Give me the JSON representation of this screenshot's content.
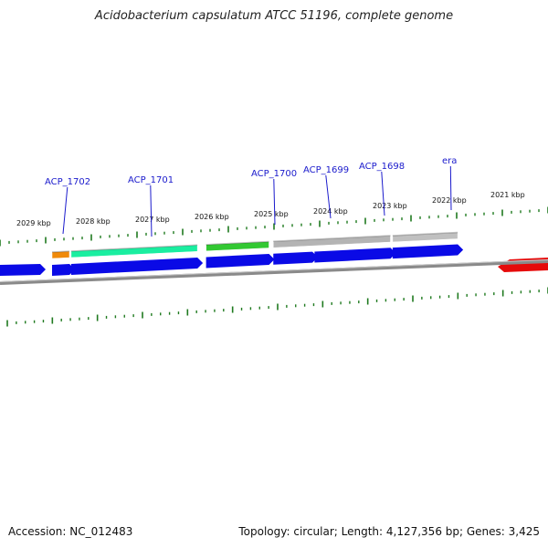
{
  "title": "Acidobacterium capsulatum ATCC 51196, complete genome",
  "footer": {
    "accession": "Accession: NC_012483",
    "topology": "Topology: circular; Length: 4,127,356 bp; Genes: 3,425"
  },
  "colors": {
    "backbone": "#8a8a8a",
    "tick": "#1f7a1f",
    "cds_forward": "#0a0ae6",
    "cds_reverse": "#e60a0a",
    "label": "#1a1acc"
  },
  "scale_labels": [
    "2029 kbp",
    "2028 kbp",
    "2027 kbp",
    "2026 kbp",
    "2025 kbp",
    "2024 kbp",
    "2023 kbp",
    "2022 kbp",
    "2021 kbp"
  ],
  "gene_labels": [
    "ACP_1702",
    "ACP_1701",
    "ACP_1700",
    "ACP_1699",
    "ACP_1698",
    "era"
  ],
  "features": [
    {
      "track": "gene",
      "color": "#f08a0a",
      "start": 0.0,
      "end": 0.04
    },
    {
      "track": "gene",
      "color": "#1aeea0",
      "start": 0.044,
      "end": 0.335
    },
    {
      "track": "gene",
      "color": "#32c832",
      "start": 0.355,
      "end": 0.5
    },
    {
      "track": "gene",
      "color": "#b4b4b4",
      "start": 0.51,
      "end": 0.78
    },
    {
      "track": "gene",
      "color": "#c0c0c0",
      "start": 0.785,
      "end": 0.935
    },
    {
      "track": "cds",
      "color": "#0a0ae6",
      "start": 0.0,
      "end": 0.04
    },
    {
      "track": "cds",
      "color": "#0a0ae6",
      "start": 0.044,
      "end": 0.335
    },
    {
      "track": "cds",
      "color": "#0a0ae6",
      "start": 0.355,
      "end": 0.5
    },
    {
      "track": "cds",
      "color": "#0a0ae6",
      "start": 0.51,
      "end": 0.6
    },
    {
      "track": "cds",
      "color": "#0a0ae6",
      "start": 0.605,
      "end": 0.78
    },
    {
      "track": "cds",
      "color": "#0a0ae6",
      "start": 0.785,
      "end": 0.935
    }
  ]
}
